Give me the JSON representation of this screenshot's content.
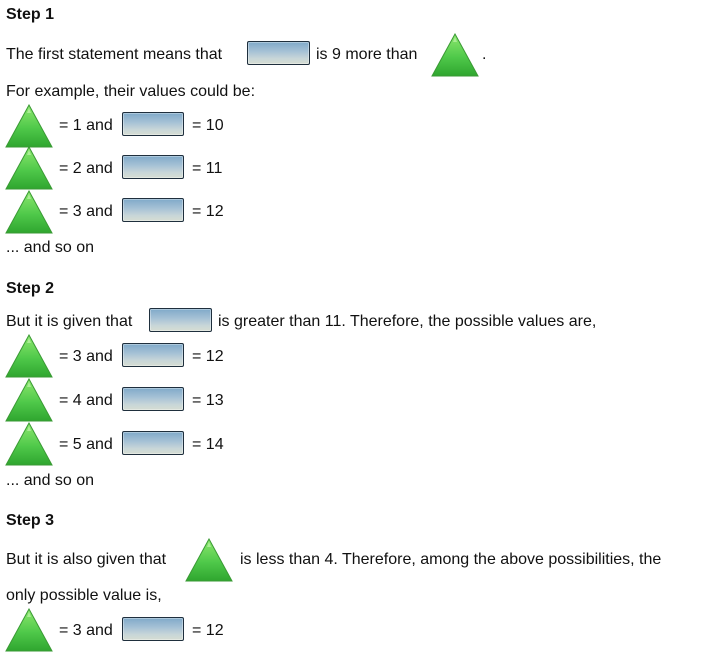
{
  "step1": {
    "heading": "Step 1",
    "line1_prefix": "The first statement means that",
    "line1_middle": "is 9 more than",
    "line1_end": ".",
    "line2": "For example, their values could be:",
    "rows": [
      {
        "tri_text": "= 1 and",
        "box_text": "= 10"
      },
      {
        "tri_text": "= 2 and",
        "box_text": "= 11"
      },
      {
        "tri_text": "= 3 and",
        "box_text": "= 12"
      }
    ],
    "ellipsis": "... and so on"
  },
  "step2": {
    "heading": "Step 2",
    "line1_prefix": "But it is given that",
    "line1_suffix": "is greater than 11. Therefore, the possible values are,",
    "rows": [
      {
        "tri_text": "= 3 and",
        "box_text": "= 12"
      },
      {
        "tri_text": "= 4 and",
        "box_text": "= 13"
      },
      {
        "tri_text": "= 5 and",
        "box_text": "= 14"
      }
    ],
    "ellipsis": "... and so on"
  },
  "step3": {
    "heading": "Step 3",
    "line1_prefix": "But it is also given that",
    "line1_suffix": "is less than 4. Therefore, among the above possibilities, the",
    "line2": "only possible value is,",
    "row": {
      "tri_text": "= 3 and",
      "box_text": "= 12"
    }
  },
  "colors": {
    "triangle_fill": "#4fc94a",
    "box_fill": "#a8c3d6"
  },
  "icons": {
    "triangle": "green-triangle-icon",
    "box": "blue-rectangle-icon"
  }
}
